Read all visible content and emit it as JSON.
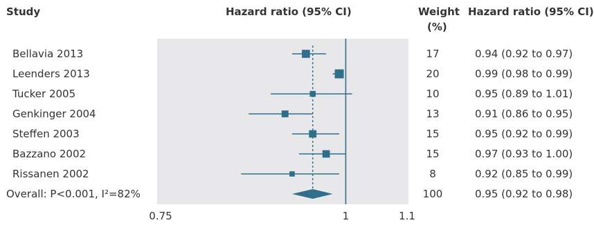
{
  "header": {
    "study": "Study",
    "hr_plot": "Hazard ratio (95% CI)",
    "weight_line1": "Weight",
    "weight_line2": "(%)",
    "hr_text": "Hazard ratio (95% CI)"
  },
  "colors": {
    "marker": "#2f6f8a",
    "panel": "#e8e8ea",
    "line": "#2f6f8a"
  },
  "chart_data": {
    "type": "forest",
    "x_scale": "log",
    "xlim": [
      0.75,
      1.1
    ],
    "xticks": [
      "0.75",
      "1",
      "1.1"
    ],
    "null_line": 1,
    "overall_line": 0.95,
    "studies": [
      {
        "label": "Bellavia 2013",
        "hr": 0.94,
        "lo": 0.92,
        "hi": 0.97,
        "weight": "17",
        "ci_text": "0.94 (0.92 to 0.97)"
      },
      {
        "label": "Leenders 2013",
        "hr": 0.99,
        "lo": 0.98,
        "hi": 0.99,
        "weight": "20",
        "ci_text": "0.99 (0.98 to 0.99)"
      },
      {
        "label": "Tucker 2005",
        "hr": 0.95,
        "lo": 0.89,
        "hi": 1.01,
        "weight": "10",
        "ci_text": "0.95 (0.89 to 1.01)"
      },
      {
        "label": "Genkinger 2004",
        "hr": 0.91,
        "lo": 0.86,
        "hi": 0.95,
        "weight": "13",
        "ci_text": "0.91 (0.86 to 0.95)"
      },
      {
        "label": "Steffen 2003",
        "hr": 0.95,
        "lo": 0.92,
        "hi": 0.99,
        "weight": "15",
        "ci_text": "0.95 (0.92 to 0.99)"
      },
      {
        "label": "Bazzano 2002",
        "hr": 0.97,
        "lo": 0.93,
        "hi": 1.0,
        "weight": "15",
        "ci_text": "0.97 (0.93 to 1.00)"
      },
      {
        "label": "Rissanen 2002",
        "hr": 0.92,
        "lo": 0.85,
        "hi": 0.99,
        "weight": "8",
        "ci_text": "0.92 (0.85 to 0.99)"
      }
    ],
    "overall": {
      "label": "Overall: P<0.001, I²=82%",
      "hr": 0.95,
      "lo": 0.92,
      "hi": 0.98,
      "weight": "100",
      "ci_text": "0.95 (0.92 to 0.98)"
    }
  }
}
